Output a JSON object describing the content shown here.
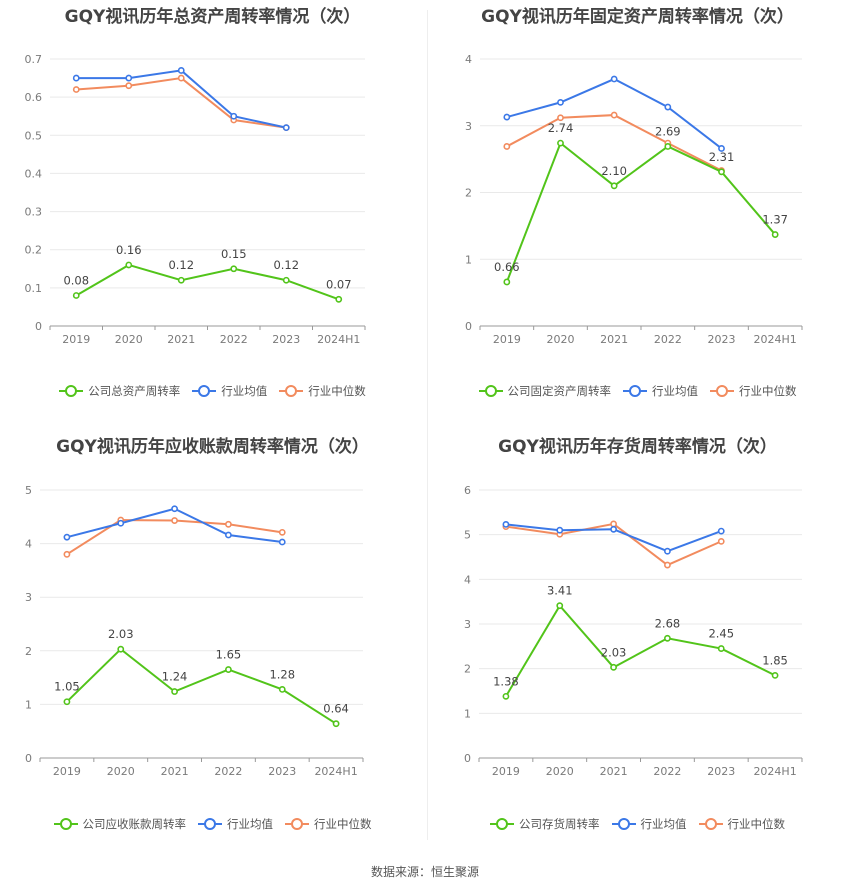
{
  "colors": {
    "company": "#52c41a",
    "industry_avg": "#3b78e7",
    "industry_median": "#f28b5e"
  },
  "source": "数据来源：恒生聚源",
  "chart_data": [
    {
      "type": "line",
      "title": "GQY视讯历年总资产周转率情况（次）",
      "categories": [
        "2019",
        "2020",
        "2021",
        "2022",
        "2023",
        "2024H1"
      ],
      "y_ticks": [
        "0",
        "0.1",
        "0.2",
        "0.3",
        "0.4",
        "0.5",
        "0.6",
        "0.7"
      ],
      "ylim": [
        0,
        0.7
      ],
      "series": [
        {
          "name": "公司总资产周转率",
          "key": "company",
          "values": [
            0.08,
            0.16,
            0.12,
            0.15,
            0.12,
            0.07
          ],
          "labels": [
            "0.08",
            "0.16",
            "0.12",
            "0.15",
            "0.12",
            "0.07"
          ]
        },
        {
          "name": "行业均值",
          "key": "industry_avg",
          "values": [
            0.65,
            0.65,
            0.67,
            0.55,
            0.52,
            null
          ]
        },
        {
          "name": "行业中位数",
          "key": "industry_median",
          "values": [
            0.62,
            0.63,
            0.65,
            0.54,
            0.52,
            null
          ]
        }
      ]
    },
    {
      "type": "line",
      "title": "GQY视讯历年固定资产周转率情况（次）",
      "categories": [
        "2019",
        "2020",
        "2021",
        "2022",
        "2023",
        "2024H1"
      ],
      "y_ticks": [
        "0",
        "1",
        "2",
        "3",
        "4"
      ],
      "ylim": [
        0,
        4
      ],
      "series": [
        {
          "name": "公司固定资产周转率",
          "key": "company",
          "values": [
            0.66,
            2.74,
            2.1,
            2.69,
            2.31,
            1.37
          ],
          "labels": [
            "0.66",
            "2.74",
            "2.10",
            "2.69",
            "2.31",
            "1.37"
          ]
        },
        {
          "name": "行业均值",
          "key": "industry_avg",
          "values": [
            3.13,
            3.35,
            3.7,
            3.28,
            2.66,
            null
          ]
        },
        {
          "name": "行业中位数",
          "key": "industry_median",
          "values": [
            2.69,
            3.12,
            3.16,
            2.74,
            2.33,
            null
          ]
        }
      ]
    },
    {
      "type": "line",
      "title": "GQY视讯历年应收账款周转率情况（次）",
      "categories": [
        "2019",
        "2020",
        "2021",
        "2022",
        "2023",
        "2024H1"
      ],
      "y_ticks": [
        "0",
        "1",
        "2",
        "3",
        "4",
        "5"
      ],
      "ylim": [
        0,
        5
      ],
      "series": [
        {
          "name": "公司应收账款周转率",
          "key": "company",
          "values": [
            1.05,
            2.03,
            1.24,
            1.65,
            1.28,
            0.64
          ],
          "labels": [
            "1.05",
            "2.03",
            "1.24",
            "1.65",
            "1.28",
            "0.64"
          ]
        },
        {
          "name": "行业均值",
          "key": "industry_avg",
          "values": [
            4.12,
            4.38,
            4.65,
            4.16,
            4.03,
            null
          ]
        },
        {
          "name": "行业中位数",
          "key": "industry_median",
          "values": [
            3.8,
            4.44,
            4.43,
            4.36,
            4.21,
            null
          ]
        }
      ]
    },
    {
      "type": "line",
      "title": "GQY视讯历年存货周转率情况（次）",
      "categories": [
        "2019",
        "2020",
        "2021",
        "2022",
        "2023",
        "2024H1"
      ],
      "y_ticks": [
        "0",
        "1",
        "2",
        "3",
        "4",
        "5",
        "6"
      ],
      "ylim": [
        0,
        6
      ],
      "series": [
        {
          "name": "公司存货周转率",
          "key": "company",
          "values": [
            1.38,
            3.41,
            2.03,
            2.68,
            2.45,
            1.85
          ],
          "labels": [
            "1.38",
            "3.41",
            "2.03",
            "2.68",
            "2.45",
            "1.85"
          ]
        },
        {
          "name": "行业均值",
          "key": "industry_avg",
          "values": [
            5.23,
            5.1,
            5.12,
            4.63,
            5.08,
            null
          ]
        },
        {
          "name": "行业中位数",
          "key": "industry_median",
          "values": [
            5.18,
            5.01,
            5.24,
            4.32,
            4.85,
            null
          ]
        }
      ]
    }
  ]
}
